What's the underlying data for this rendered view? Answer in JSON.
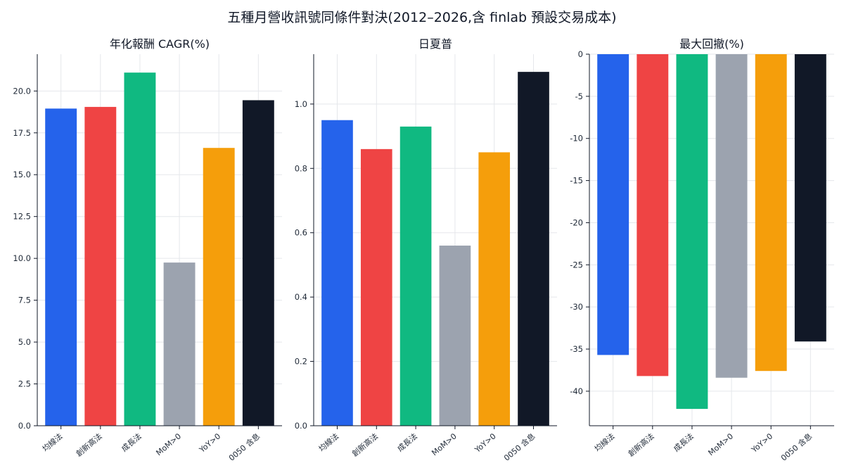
{
  "figure": {
    "title": "五種月營收訊號同條件對決(2012–2026,含 finlab 預設交易成本)"
  },
  "colors": [
    "#2563eb",
    "#ef4444",
    "#10b981",
    "#9ca3af",
    "#f59e0b",
    "#111827"
  ],
  "chart_data": [
    {
      "type": "bar",
      "title": "年化報酬 CAGR(%)",
      "categories": [
        "均線法",
        "創新高法",
        "成長法",
        "MoM>0",
        "YoY>0",
        "0050 含息"
      ],
      "values": [
        18.95,
        19.05,
        21.1,
        9.75,
        16.6,
        19.45
      ],
      "ylim": [
        0,
        22.2
      ],
      "yticks": [
        0,
        2.5,
        5,
        7.5,
        10,
        12.5,
        15,
        17.5,
        20
      ],
      "ytick_labels": [
        "0.0",
        "2.5",
        "5.0",
        "7.5",
        "10.0",
        "12.5",
        "15.0",
        "17.5",
        "20.0"
      ],
      "grid": true
    },
    {
      "type": "bar",
      "title": "日夏普",
      "categories": [
        "均線法",
        "創新高法",
        "成長法",
        "MoM>0",
        "YoY>0",
        "0050 含息"
      ],
      "values": [
        0.95,
        0.86,
        0.93,
        0.56,
        0.85,
        1.1
      ],
      "ylim": [
        0,
        1.155
      ],
      "yticks": [
        0,
        0.2,
        0.4,
        0.6,
        0.8,
        1.0
      ],
      "ytick_labels": [
        "0.0",
        "0.2",
        "0.4",
        "0.6",
        "0.8",
        "1.0"
      ],
      "grid": true
    },
    {
      "type": "bar",
      "title": "最大回撤(%)",
      "categories": [
        "均線法",
        "創新高法",
        "成長法",
        "MoM>0",
        "YoY>0",
        "0050 含息"
      ],
      "values": [
        -35.7,
        -38.2,
        -42.1,
        -38.4,
        -37.6,
        -34.1
      ],
      "ylim": [
        -44.1,
        0
      ],
      "yticks": [
        0,
        -5,
        -10,
        -15,
        -20,
        -25,
        -30,
        -35,
        -40
      ],
      "ytick_labels": [
        "0",
        "-5",
        "-10",
        "-15",
        "-20",
        "-25",
        "-30",
        "-35",
        "-40"
      ],
      "grid": true
    }
  ]
}
